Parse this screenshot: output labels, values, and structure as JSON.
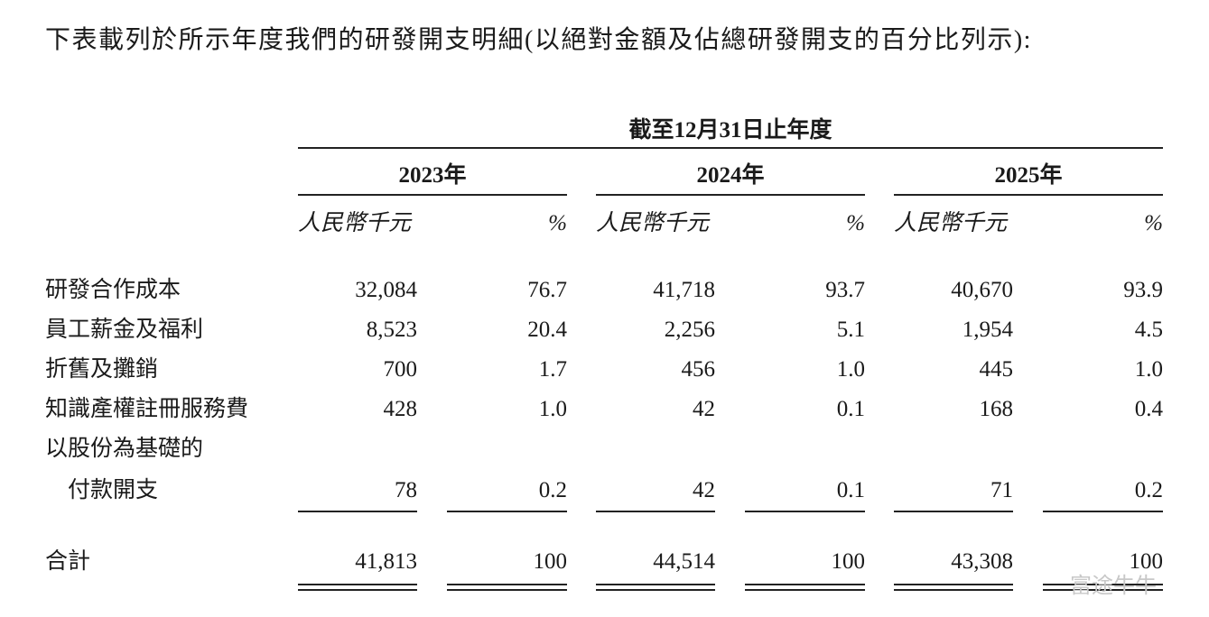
{
  "intro": "下表載列於所示年度我們的研發開支明細(以絕對金額及佔總研發開支的百分比列示):",
  "period_header": "截至12月31日止年度",
  "years": [
    "2023年",
    "2024年",
    "2025年"
  ],
  "column_headers": [
    [
      "人民幣千元",
      "%"
    ],
    [
      "人民幣千元",
      "%"
    ],
    [
      "人民幣千元",
      "%"
    ]
  ],
  "rows": [
    {
      "label": [
        "研發合作成本"
      ],
      "values": [
        "32,084",
        "76.7",
        "41,718",
        "93.7",
        "40,670",
        "93.9"
      ]
    },
    {
      "label": [
        "員工薪金及福利"
      ],
      "values": [
        "8,523",
        "20.4",
        "2,256",
        "5.1",
        "1,954",
        "4.5"
      ]
    },
    {
      "label": [
        "折舊及攤銷"
      ],
      "values": [
        "700",
        "1.7",
        "456",
        "1.0",
        "445",
        "1.0"
      ]
    },
    {
      "label": [
        "知識產權註冊服務費"
      ],
      "values": [
        "428",
        "1.0",
        "42",
        "0.1",
        "168",
        "0.4"
      ]
    },
    {
      "label": [
        "以股份為基礎的",
        "付款開支"
      ],
      "values": [
        "78",
        "0.2",
        "42",
        "0.1",
        "71",
        "0.2"
      ]
    }
  ],
  "total": {
    "label": "合計",
    "values": [
      "41,813",
      "100",
      "44,514",
      "100",
      "43,308",
      "100"
    ]
  },
  "watermark": "富途牛牛"
}
